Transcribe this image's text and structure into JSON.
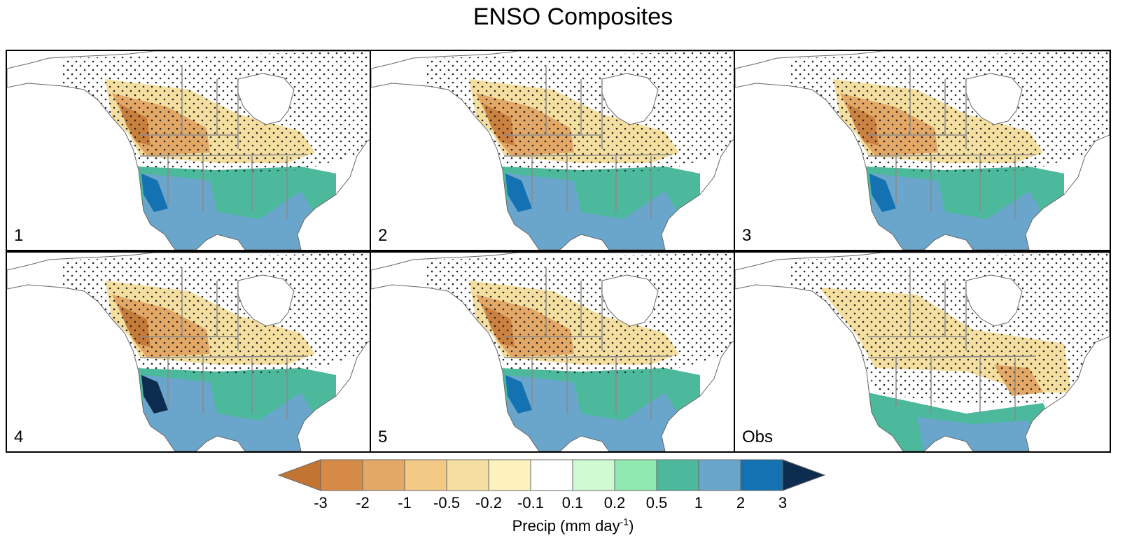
{
  "figure": {
    "title": "ENSO Composites",
    "colorbar_label_main": "Precip (mm day",
    "colorbar_label_exp": "-1",
    "colorbar_label_close": ")"
  },
  "panels": [
    {
      "label": "1",
      "pattern": "model",
      "strength": 1.0
    },
    {
      "label": "2",
      "pattern": "model",
      "strength": 0.95
    },
    {
      "label": "3",
      "pattern": "model",
      "strength": 0.9
    },
    {
      "label": "4",
      "pattern": "model",
      "strength": 1.1
    },
    {
      "label": "5",
      "pattern": "model",
      "strength": 0.95
    },
    {
      "label": "Obs",
      "pattern": "obs",
      "strength": 0.85
    }
  ],
  "colorbar": {
    "ticks": [
      "-3",
      "-2",
      "-1",
      "-0.5",
      "-0.2",
      "-0.1",
      "0.1",
      "0.2",
      "0.5",
      "1",
      "2",
      "3"
    ],
    "colors": [
      "#c27533",
      "#d68a47",
      "#e4a866",
      "#f2c985",
      "#f5dfa0",
      "#fdf2bd",
      "#ffffff",
      "#cffad2",
      "#8fe8ad",
      "#4cb99c",
      "#6aa6cc",
      "#1471b2",
      "#0c2d4f"
    ]
  },
  "legend_colors": {
    "dry_strong": "#c27533",
    "dry_mid": "#e4a866",
    "dry_light": "#f5dfa0",
    "wet_light": "#cffad2",
    "wet_mid": "#4cb99c",
    "wet_strong": "#6aa6cc",
    "wet_max": "#1471b2",
    "wet_extreme": "#0c2d4f",
    "boundary": "#8a8a8a",
    "coast": "#666666"
  }
}
